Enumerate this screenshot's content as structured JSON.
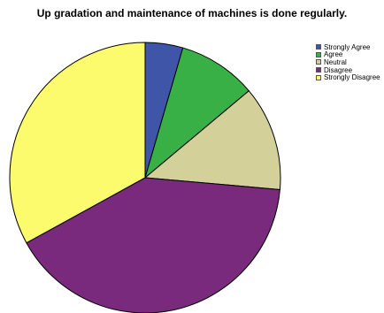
{
  "chart_data": {
    "type": "pie",
    "title": "Up gradation and maintenance of machines is done regularly.",
    "categories": [
      "Strongly Agree",
      "Agree",
      "Neutral",
      "Disagree",
      "Strongly Disagree"
    ],
    "values": [
      4.5,
      9.4,
      12.5,
      40.6,
      33.0
    ],
    "colors": [
      "#3f55a8",
      "#38b045",
      "#d3d09a",
      "#792a7c",
      "#fbfb6d"
    ],
    "legend_position": "top-right",
    "start_angle": "12 o'clock",
    "direction": "clockwise"
  }
}
